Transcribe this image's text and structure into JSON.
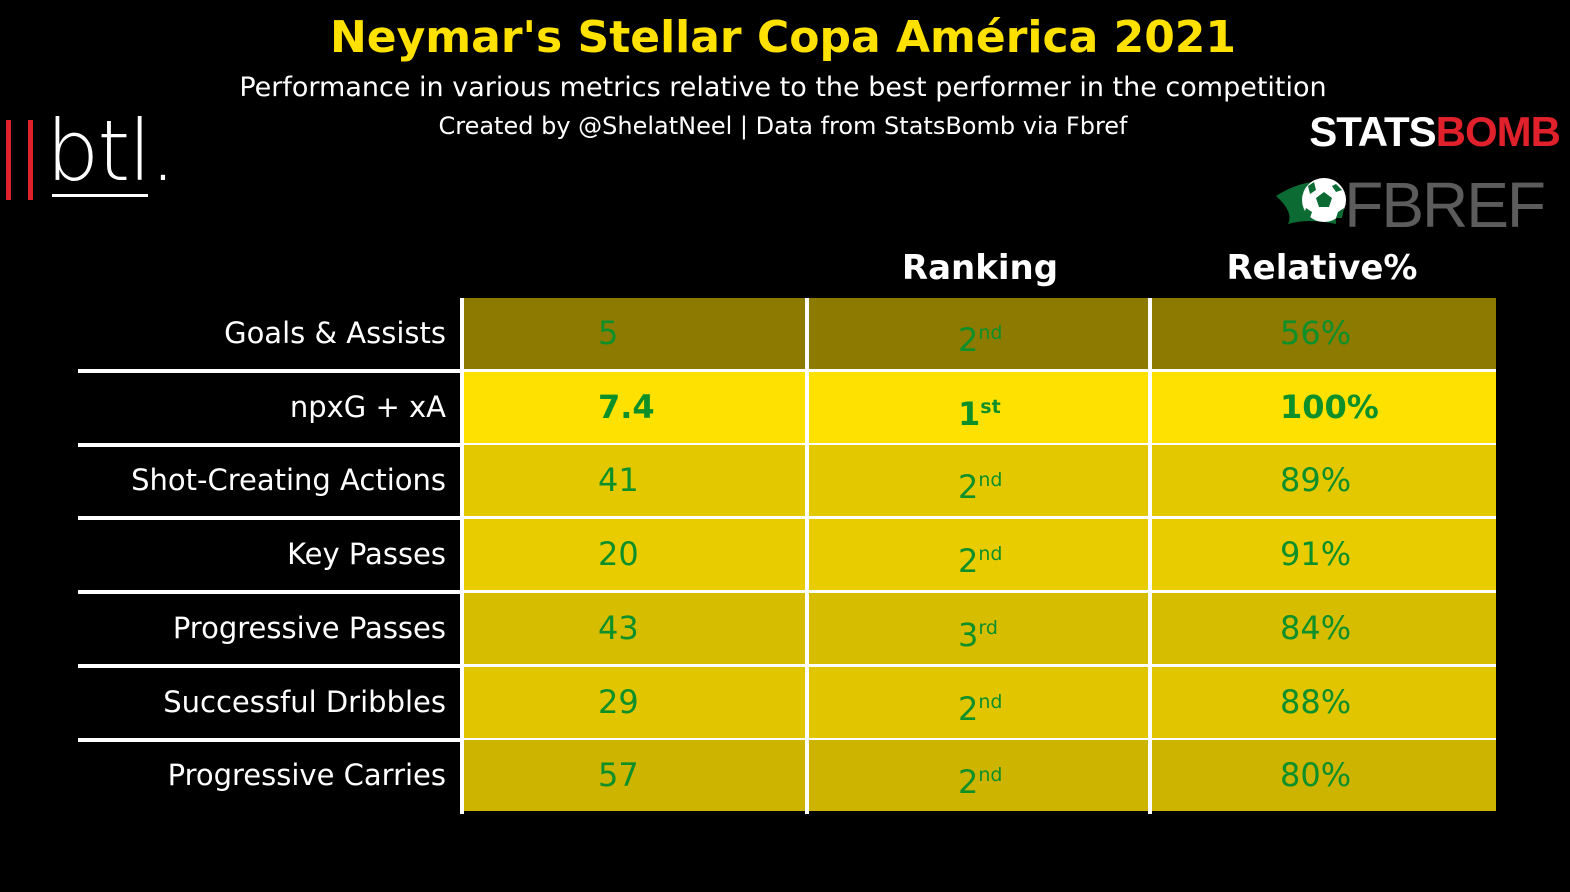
{
  "title": "Neymar's Stellar Copa América 2021",
  "subtitle": "Performance in various metrics relative to the best performer in the competition",
  "credit": "Created by @ShelatNeel | Data from StatsBomb via Fbref",
  "logos": {
    "btl": "btl.",
    "statsbomb_white": "STATS",
    "statsbomb_red": "BOMB",
    "fbref": "FBREF"
  },
  "colors": {
    "title": "#ffe100",
    "value_text": "#0d8f2a",
    "best_row": "#ffe100"
  },
  "chart_data": {
    "type": "table",
    "columns": [
      "",
      "",
      "Ranking",
      "Relative%"
    ],
    "rows": [
      {
        "metric": "Goals & Assists",
        "value": "5",
        "rank": "2",
        "rank_suffix": "nd",
        "relative": "56%",
        "relative_value": 56,
        "color": "#8c7b00"
      },
      {
        "metric": "npxG + xA",
        "value": "7.4",
        "rank": "1",
        "rank_suffix": "st",
        "relative": "100%",
        "relative_value": 100,
        "color": "#ffe100",
        "best": true
      },
      {
        "metric": "Shot-Creating Actions",
        "value": "41",
        "rank": "2",
        "rank_suffix": "nd",
        "relative": "89%",
        "relative_value": 89,
        "color": "#e3c800"
      },
      {
        "metric": "Key Passes",
        "value": "20",
        "rank": "2",
        "rank_suffix": "nd",
        "relative": "91%",
        "relative_value": 91,
        "color": "#e8cc00"
      },
      {
        "metric": "Progressive Passes",
        "value": "43",
        "rank": "3",
        "rank_suffix": "rd",
        "relative": "84%",
        "relative_value": 84,
        "color": "#d6bd00"
      },
      {
        "metric": "Successful Dribbles",
        "value": "29",
        "rank": "2",
        "rank_suffix": "nd",
        "relative": "88%",
        "relative_value": 88,
        "color": "#e0c500"
      },
      {
        "metric": "Progressive Carries",
        "value": "57",
        "rank": "2",
        "rank_suffix": "nd",
        "relative": "80%",
        "relative_value": 80,
        "color": "#cdb400"
      }
    ]
  }
}
